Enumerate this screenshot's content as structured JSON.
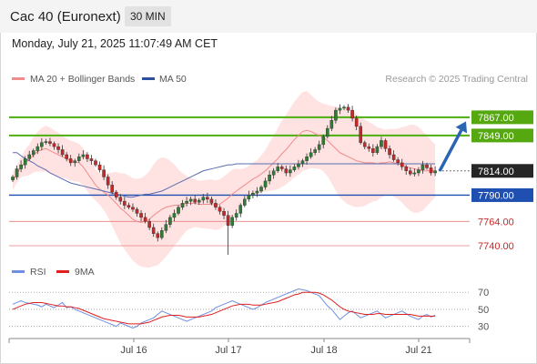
{
  "header": {
    "title": "Cac 40 (Euronext)",
    "timeframe": "30 MIN"
  },
  "datetime": "Monday, July 21, 2025 11:07:49 AM CET",
  "copyright": "Research © 2025 Trading Central",
  "colors": {
    "up": "#2e7d32",
    "down": "#c62828",
    "resistance": "#4caf0f",
    "support": "#1f4fb0",
    "bands": "#ffd6d6",
    "ma20": "#f28b8b",
    "ma50": "#5a6db0",
    "rsi": "#6e8ee0",
    "rsi_ma": "#e02020",
    "arrow": "#2a64b2"
  },
  "chart_data": [
    {
      "type": "candlestick",
      "legend": [
        {
          "label": "MA 20 + Bollinger Bands",
          "color": "#f28b8b"
        },
        {
          "label": "MA 50",
          "color": "#2c4fa0"
        }
      ],
      "ylim": [
        7731,
        7893
      ],
      "x_labels": [
        "Jul 16",
        "Jul 17",
        "Jul 18",
        "Jul 21"
      ],
      "levels": [
        {
          "value": 7867.0,
          "label": "7867.00",
          "kind": "resistance"
        },
        {
          "value": 7849.0,
          "label": "7849.00",
          "kind": "resistance"
        },
        {
          "value": 7814.0,
          "label": "7814.00",
          "kind": "last"
        },
        {
          "value": 7790.0,
          "label": "7790.00",
          "kind": "support"
        },
        {
          "value": 7764.0,
          "label": "7764.00",
          "kind": "minor"
        },
        {
          "value": 7740.0,
          "label": "7740.00",
          "kind": "minor"
        }
      ],
      "forecast_arrow": {
        "from": 7814,
        "to": 7863
      },
      "close": [
        7808,
        7816,
        7820,
        7826,
        7830,
        7834,
        7838,
        7842,
        7843,
        7841,
        7838,
        7835,
        7830,
        7826,
        7822,
        7824,
        7828,
        7830,
        7826,
        7824,
        7820,
        7815,
        7808,
        7800,
        7793,
        7788,
        7784,
        7780,
        7778,
        7776,
        7772,
        7768,
        7764,
        7758,
        7752,
        7748,
        7755,
        7761,
        7768,
        7772,
        7778,
        7782,
        7784,
        7786,
        7783,
        7785,
        7788,
        7786,
        7782,
        7778,
        7774,
        7770,
        7760,
        7768,
        7772,
        7780,
        7786,
        7790,
        7792,
        7794,
        7798,
        7804,
        7810,
        7814,
        7818,
        7816,
        7812,
        7815,
        7818,
        7821,
        7824,
        7828,
        7832,
        7835,
        7840,
        7848,
        7856,
        7864,
        7874,
        7876,
        7877,
        7874,
        7866,
        7858,
        7842,
        7838,
        7836,
        7832,
        7838,
        7844,
        7836,
        7830,
        7825,
        7822,
        7818,
        7814,
        7811,
        7812,
        7815,
        7820,
        7817,
        7812,
        7814
      ],
      "ma20": [
        7804,
        7811,
        7818,
        7822,
        7825,
        7830,
        7833,
        7835,
        7836,
        7834,
        7832,
        7830,
        7828,
        7826,
        7824,
        7823,
        7822,
        7818,
        7812,
        7806,
        7800,
        7796,
        7793,
        7790,
        7786,
        7782,
        7777,
        7774,
        7770,
        7766,
        7764,
        7763,
        7764,
        7766,
        7770,
        7773,
        7776,
        7778,
        7779,
        7780,
        7780,
        7781,
        7782,
        7782,
        7782,
        7781,
        7781,
        7781,
        7781,
        7780,
        7781,
        7784,
        7787,
        7791,
        7794,
        7797,
        7800,
        7803,
        7806,
        7808,
        7811,
        7814,
        7818,
        7822,
        7826,
        7831,
        7835,
        7840,
        7845,
        7849,
        7853,
        7854,
        7853,
        7851,
        7849,
        7847,
        7844,
        7840,
        7836,
        7832,
        7830,
        7828,
        7826,
        7824,
        7823,
        7822,
        7822,
        7822,
        7821,
        7822,
        7822,
        7823,
        7822,
        7821,
        7820,
        7818,
        7817,
        7816,
        7815,
        7814,
        7814,
        7814,
        7814
      ],
      "ma50": [
        7832,
        7832,
        7829,
        7826,
        7824,
        7822,
        7819,
        7817,
        7815,
        7812,
        7810,
        7808,
        7806,
        7804,
        7802,
        7801,
        7800,
        7799,
        7798,
        7797,
        7796,
        7795,
        7794,
        7793,
        7792,
        7791,
        7790,
        7789,
        7788,
        7788,
        7789,
        7790,
        7791,
        7791,
        7792,
        7793,
        7794,
        7796,
        7798,
        7800,
        7802,
        7804,
        7806,
        7808,
        7810,
        7812,
        7814,
        7815,
        7816,
        7817,
        7818,
        7819,
        7820,
        7820,
        7821,
        7821,
        7821,
        7821,
        7821,
        7821,
        7821,
        7821,
        7821,
        7821,
        7821,
        7821,
        7821,
        7821,
        7821,
        7821,
        7821,
        7821,
        7821,
        7821,
        7821,
        7821,
        7821,
        7821,
        7821,
        7821,
        7821,
        7821,
        7821,
        7821,
        7821,
        7821,
        7821,
        7821,
        7821,
        7821,
        7821,
        7821,
        7821,
        7821,
        7821,
        7821,
        7821,
        7821,
        7821,
        7821,
        7821,
        7821,
        7821
      ]
    },
    {
      "type": "line",
      "legend": [
        {
          "label": "RSI",
          "color": "#6e8ee0"
        },
        {
          "label": "9MA",
          "color": "#e02020"
        }
      ],
      "ylim": [
        20,
        82
      ],
      "y_ticks": [
        70,
        50,
        30
      ],
      "rsi": [
        56,
        58,
        60,
        58,
        57,
        56,
        55,
        53,
        56,
        54,
        52,
        55,
        58,
        52,
        53,
        50,
        48,
        46,
        44,
        42,
        40,
        38,
        36,
        34,
        32,
        30,
        34,
        32,
        30,
        28,
        30,
        34,
        36,
        38,
        40,
        44,
        48,
        46,
        44,
        42,
        40,
        38,
        36,
        38,
        40,
        42,
        44,
        46,
        48,
        52,
        54,
        56,
        58,
        60,
        58,
        56,
        54,
        52,
        50,
        52,
        55,
        58,
        60,
        62,
        64,
        66,
        68,
        70,
        72,
        74,
        73,
        72,
        70,
        68,
        66,
        60,
        54,
        50,
        44,
        38,
        42,
        46,
        48,
        44,
        40,
        42,
        44,
        46,
        48,
        44,
        40,
        42,
        44,
        46,
        48,
        45,
        42,
        40,
        38,
        42,
        44,
        41,
        43
      ],
      "rsi_ma": [
        50,
        52,
        54,
        56,
        57,
        58,
        58,
        58,
        57,
        56,
        55,
        54,
        54,
        53,
        53,
        52,
        51,
        49,
        47,
        45,
        43,
        41,
        39,
        38,
        37,
        36,
        35,
        34,
        33,
        33,
        33,
        33,
        34,
        35,
        37,
        39,
        41,
        42,
        43,
        43,
        43,
        42,
        41,
        41,
        41,
        41,
        42,
        43,
        44,
        46,
        48,
        50,
        52,
        54,
        55,
        56,
        56,
        56,
        55,
        55,
        55,
        56,
        57,
        58,
        59,
        61,
        63,
        65,
        67,
        68,
        70,
        70,
        70,
        70,
        69,
        67,
        64,
        61,
        57,
        53,
        50,
        48,
        47,
        46,
        45,
        44,
        44,
        44,
        45,
        45,
        44,
        44,
        44,
        44,
        44,
        44,
        44,
        43,
        42,
        42,
        42,
        42,
        42
      ]
    }
  ]
}
